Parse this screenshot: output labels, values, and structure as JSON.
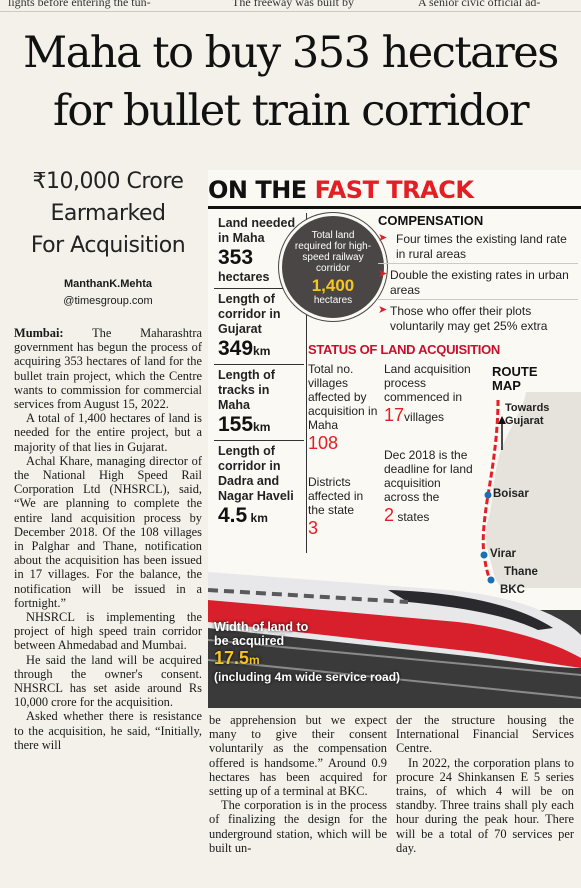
{
  "top_strip": {
    "col1": "lights before entering the tun-",
    "col2": "The freeway was built by",
    "col3": "A senior civic official ad-"
  },
  "headline": {
    "line1": "Maha to buy 353 hectares",
    "line2": "for bullet train corridor"
  },
  "subhead": {
    "line1": "₹10,000 Crore",
    "line2": "Earmarked",
    "line3": "For Acquisition"
  },
  "byline": {
    "name": "ManthanK.Mehta",
    "handle": "@timesgroup.com"
  },
  "article": {
    "dateline": "Mumbai:",
    "p1_rest": " The Maharashtra government has begun the process of acquiring 353 hectares of land for the bullet train project, which the Centre wants to commission for commercial services from August 15, 2022.",
    "p2": "A total of 1,400 hectares of land is needed for the entire project, but a majority of that lies in Gujarat.",
    "p3": "Achal Khare, managing director of the National High Speed Rail Corporation Ltd (NHSRCL), said, “We are planning to complete the entire land acquisition process by December 2018. Of the 108 villages in Palghar and Thane, notification about the acquisition has been issued in 17 villages. For the balance, the notification will be issued in a fortnight.”",
    "p4": "NHSRCL is implementing the project of high speed train corridor between Ahmedabad and Mumbai.",
    "p5": "He said the land will be acquired through the owner's consent. NHSRCL has set aside around Rs 10,000 crore for the acquisition.",
    "p6": "Asked whether there is resistance to the acquisition, he said, “Initially, there will",
    "col2_p1": "be apprehension but we expect many to give their consent voluntarily as the compensation offered is handsome.” Around 0.9 hectares has been acquired for setting up of a terminal at BKC.",
    "col2_p2": "The corporation is in the process of finalizing the design for the underground station, which will be built un-",
    "col3_p1": "der the structure housing the International Financial Services Centre.",
    "col3_p2": "In 2022, the corporation plans to procure 24 Shinkansen E 5 series trains, of which 4 will be on standby. Three trains shall ply each hour during the peak hour. There will be a total of 70 services per day."
  },
  "graphic": {
    "title_black": "ON THE ",
    "title_red": "FAST TRACK",
    "facts": [
      {
        "label": "Land needed in Maha",
        "value": "353",
        "unit": "hectares"
      },
      {
        "label": "Length of corridor in Gujarat",
        "value": "349",
        "unit": "km"
      },
      {
        "label": "Length of tracks in Maha",
        "value": "155",
        "unit": "km"
      },
      {
        "label": "Length of corridor in Dadra and Nagar Haveli",
        "value": "4.5",
        "unit": " km"
      }
    ],
    "circle": {
      "text": "Total land required for high-speed railway corridor",
      "value": "1,400",
      "unit": "hectares"
    },
    "compensation": {
      "heading": "COMPENSATION",
      "items": [
        "Four times the existing land rate in rural areas",
        "Double the existing rates in urban areas",
        "Those who offer their plots voluntarily may get 25% extra"
      ]
    },
    "status": {
      "heading": "STATUS OF LAND ACQUISITION",
      "villages_label": "Total no. villages affected by acquisition in Maha",
      "villages_value": "108",
      "districts_label": "Districts affected in the state",
      "districts_value": "3",
      "process_label": "Land acquisition process commenced in",
      "process_value": "17",
      "process_unit": "villages",
      "deadline_label": "Dec 2018 is the deadline for land acquisition across the",
      "deadline_value": "2",
      "deadline_unit": " states"
    },
    "route": {
      "heading_line1": "ROUTE",
      "heading_line2": "MAP",
      "towards": "Towards Gujarat",
      "stations": [
        "Boisar",
        "Virar",
        "Thane",
        "BKC"
      ]
    },
    "width": {
      "label": "Width of land to be acquired",
      "value": "17.5",
      "unit": "m",
      "note": "(including 4m wide service road)"
    },
    "colors": {
      "accent_red": "#e31e24",
      "highlight_yellow": "#f7c520",
      "route_blue": "#1a6fb5"
    }
  }
}
